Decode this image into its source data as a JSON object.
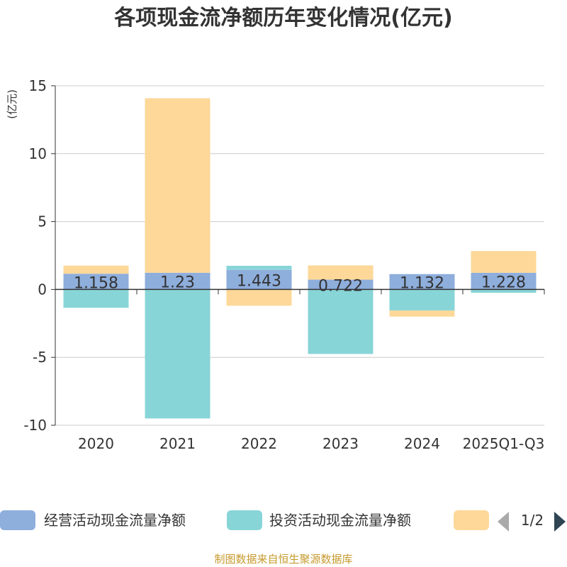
{
  "chart_data": {
    "type": "bar",
    "stacked": true,
    "title": "各项现金流净额历年变化情况(亿元)",
    "ylabel": "(亿元)",
    "ylim": [
      -10,
      15
    ],
    "yticks": [
      15,
      10,
      5,
      0,
      -5,
      -10
    ],
    "categories": [
      "2020",
      "2021",
      "2022",
      "2023",
      "2024",
      "2025Q1-Q3"
    ],
    "series": [
      {
        "name": "经营活动现金流量净额",
        "color": "#8eaedc",
        "values": [
          1.158,
          1.23,
          1.443,
          0.722,
          1.132,
          1.228
        ],
        "show_labels": true
      },
      {
        "name": "投资活动现金流量净额",
        "color": "#88d5d8",
        "values": [
          -1.35,
          -9.5,
          0.3,
          -4.75,
          -1.55,
          -0.25
        ],
        "show_labels": false
      },
      {
        "name": "",
        "color": "#fdd898",
        "values": [
          0.6,
          12.85,
          -1.2,
          1.05,
          -0.45,
          1.6
        ],
        "show_labels": false
      }
    ],
    "legend": {
      "position": "bottom",
      "page": "1/2"
    }
  },
  "source": "制图数据来自恒生聚源数据库"
}
